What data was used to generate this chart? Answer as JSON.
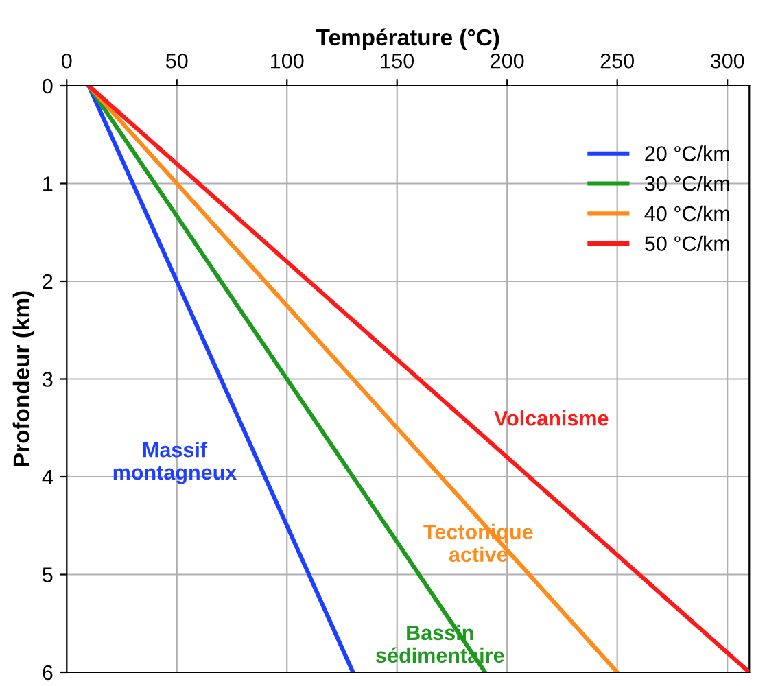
{
  "chart_data": {
    "type": "line",
    "xlabel": "Température (°C)",
    "ylabel": "Profondeur (km)",
    "xlim": [
      0,
      310
    ],
    "xticks": [
      0,
      50,
      100,
      150,
      200,
      250,
      300
    ],
    "ylim": [
      6,
      0
    ],
    "yticks": [
      0,
      1,
      2,
      3,
      4,
      5,
      6
    ],
    "grid": true,
    "legend": "top right",
    "marker": "none",
    "line_style": "solid",
    "series": [
      {
        "name": "20 °C/km",
        "color": "#1f3fff",
        "x": [
          10,
          130
        ],
        "values": [
          0,
          6
        ]
      },
      {
        "name": "30 °C/km",
        "color": "#1e9a1e",
        "x": [
          10,
          190
        ],
        "values": [
          0,
          6
        ]
      },
      {
        "name": "40 °C/km",
        "color": "#ff8c1a",
        "x": [
          10,
          250
        ],
        "values": [
          0,
          6
        ]
      },
      {
        "name": "50 °C/km",
        "color": "#ff1a1a",
        "x": [
          10,
          310
        ],
        "values": [
          0,
          6
        ]
      }
    ],
    "annotations": [
      "Massif\nmontagneux",
      "Bassin\nsédimentaire",
      "Tectonique\nactive",
      "Volcanisme"
    ]
  }
}
